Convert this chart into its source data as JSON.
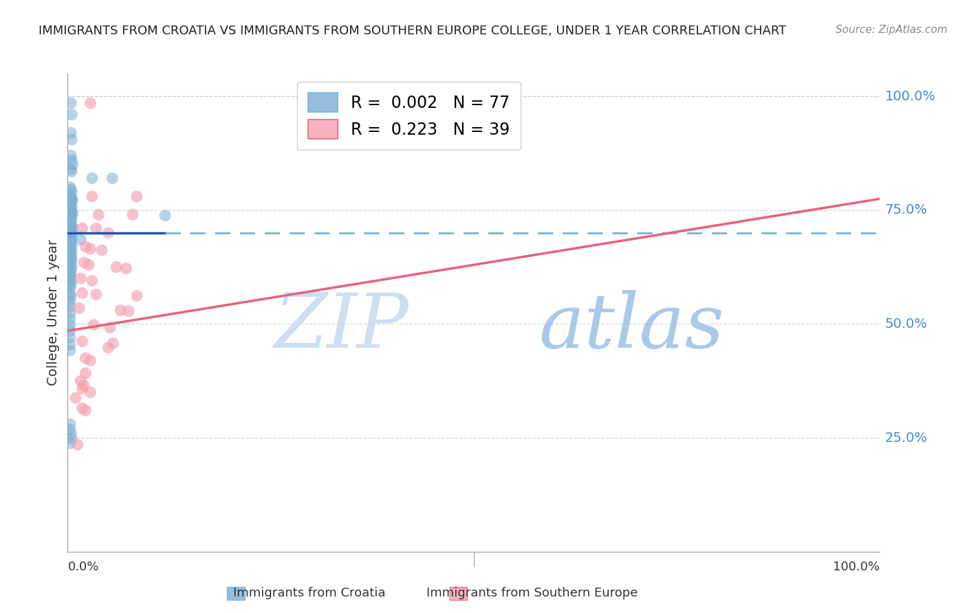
{
  "title": "IMMIGRANTS FROM CROATIA VS IMMIGRANTS FROM SOUTHERN EUROPE COLLEGE, UNDER 1 YEAR CORRELATION CHART",
  "source": "Source: ZipAtlas.com",
  "ylabel": "College, Under 1 year",
  "ytick_labels": [
    "25.0%",
    "50.0%",
    "75.0%",
    "100.0%"
  ],
  "ytick_values": [
    0.25,
    0.5,
    0.75,
    1.0
  ],
  "legend_blue_r": "0.002",
  "legend_blue_n": "77",
  "legend_pink_r": "0.223",
  "legend_pink_n": "39",
  "legend_blue_label": "Immigrants from Croatia",
  "legend_pink_label": "Immigrants from Southern Europe",
  "watermark_zip": "ZIP",
  "watermark_atlas": "atlas",
  "blue_color": "#7BAFD4",
  "pink_color": "#F4A0B0",
  "blue_line_color": "#2255AA",
  "blue_dash_color": "#7BAFD4",
  "pink_line_color": "#E8607A",
  "blue_dots": [
    [
      0.004,
      0.985
    ],
    [
      0.005,
      0.96
    ],
    [
      0.004,
      0.92
    ],
    [
      0.005,
      0.905
    ],
    [
      0.004,
      0.87
    ],
    [
      0.005,
      0.86
    ],
    [
      0.006,
      0.85
    ],
    [
      0.004,
      0.84
    ],
    [
      0.005,
      0.835
    ],
    [
      0.03,
      0.82
    ],
    [
      0.055,
      0.82
    ],
    [
      0.003,
      0.8
    ],
    [
      0.004,
      0.795
    ],
    [
      0.005,
      0.79
    ],
    [
      0.003,
      0.782
    ],
    [
      0.004,
      0.778
    ],
    [
      0.005,
      0.775
    ],
    [
      0.006,
      0.772
    ],
    [
      0.003,
      0.765
    ],
    [
      0.004,
      0.762
    ],
    [
      0.005,
      0.758
    ],
    [
      0.003,
      0.752
    ],
    [
      0.004,
      0.748
    ],
    [
      0.005,
      0.745
    ],
    [
      0.006,
      0.742
    ],
    [
      0.003,
      0.738
    ],
    [
      0.004,
      0.735
    ],
    [
      0.005,
      0.73
    ],
    [
      0.003,
      0.725
    ],
    [
      0.004,
      0.72
    ],
    [
      0.005,
      0.715
    ],
    [
      0.006,
      0.712
    ],
    [
      0.003,
      0.708
    ],
    [
      0.004,
      0.705
    ],
    [
      0.005,
      0.7
    ],
    [
      0.003,
      0.695
    ],
    [
      0.004,
      0.69
    ],
    [
      0.005,
      0.685
    ],
    [
      0.016,
      0.685
    ],
    [
      0.003,
      0.68
    ],
    [
      0.004,
      0.675
    ],
    [
      0.005,
      0.67
    ],
    [
      0.003,
      0.665
    ],
    [
      0.004,
      0.66
    ],
    [
      0.005,
      0.655
    ],
    [
      0.003,
      0.65
    ],
    [
      0.004,
      0.645
    ],
    [
      0.005,
      0.64
    ],
    [
      0.003,
      0.635
    ],
    [
      0.004,
      0.63
    ],
    [
      0.005,
      0.625
    ],
    [
      0.003,
      0.62
    ],
    [
      0.004,
      0.615
    ],
    [
      0.003,
      0.61
    ],
    [
      0.004,
      0.605
    ],
    [
      0.003,
      0.6
    ],
    [
      0.004,
      0.595
    ],
    [
      0.003,
      0.59
    ],
    [
      0.004,
      0.585
    ],
    [
      0.003,
      0.578
    ],
    [
      0.003,
      0.565
    ],
    [
      0.004,
      0.56
    ],
    [
      0.003,
      0.55
    ],
    [
      0.003,
      0.538
    ],
    [
      0.003,
      0.525
    ],
    [
      0.003,
      0.512
    ],
    [
      0.003,
      0.498
    ],
    [
      0.003,
      0.485
    ],
    [
      0.003,
      0.47
    ],
    [
      0.003,
      0.455
    ],
    [
      0.003,
      0.442
    ],
    [
      0.003,
      0.28
    ],
    [
      0.003,
      0.268
    ],
    [
      0.004,
      0.258
    ],
    [
      0.005,
      0.248
    ],
    [
      0.003,
      0.238
    ],
    [
      0.12,
      0.738
    ]
  ],
  "pink_dots": [
    [
      0.028,
      0.985
    ],
    [
      0.03,
      0.78
    ],
    [
      0.085,
      0.78
    ],
    [
      0.038,
      0.74
    ],
    [
      0.08,
      0.74
    ],
    [
      0.018,
      0.71
    ],
    [
      0.035,
      0.71
    ],
    [
      0.05,
      0.7
    ],
    [
      0.022,
      0.67
    ],
    [
      0.028,
      0.665
    ],
    [
      0.042,
      0.662
    ],
    [
      0.02,
      0.635
    ],
    [
      0.026,
      0.63
    ],
    [
      0.06,
      0.625
    ],
    [
      0.072,
      0.622
    ],
    [
      0.016,
      0.6
    ],
    [
      0.03,
      0.595
    ],
    [
      0.018,
      0.568
    ],
    [
      0.035,
      0.565
    ],
    [
      0.085,
      0.562
    ],
    [
      0.014,
      0.535
    ],
    [
      0.065,
      0.53
    ],
    [
      0.075,
      0.528
    ],
    [
      0.032,
      0.498
    ],
    [
      0.052,
      0.492
    ],
    [
      0.018,
      0.462
    ],
    [
      0.056,
      0.458
    ],
    [
      0.022,
      0.425
    ],
    [
      0.028,
      0.42
    ],
    [
      0.022,
      0.392
    ],
    [
      0.018,
      0.358
    ],
    [
      0.028,
      0.35
    ],
    [
      0.012,
      0.235
    ],
    [
      0.05,
      0.448
    ],
    [
      0.018,
      0.315
    ],
    [
      0.022,
      0.31
    ],
    [
      0.016,
      0.375
    ],
    [
      0.02,
      0.365
    ],
    [
      0.01,
      0.338
    ]
  ],
  "blue_trend_solid_end": 0.12,
  "blue_trend_y": 0.7,
  "pink_trend_start_y": 0.485,
  "pink_trend_end_y": 0.775,
  "xlim": [
    0.0,
    1.0
  ],
  "ylim": [
    0.0,
    1.05
  ],
  "background_color": "#FFFFFF",
  "grid_color": "#CCCCCC"
}
